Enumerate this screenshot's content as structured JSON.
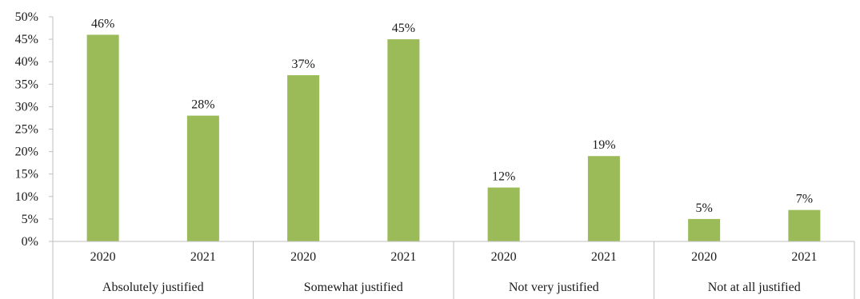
{
  "chart_data": {
    "type": "bar",
    "groups": [
      {
        "label": "Absolutely justified",
        "bars": [
          {
            "year": "2020",
            "value": 46,
            "label": "46%"
          },
          {
            "year": "2021",
            "value": 28,
            "label": "28%"
          }
        ]
      },
      {
        "label": "Somewhat justified",
        "bars": [
          {
            "year": "2020",
            "value": 37,
            "label": "37%"
          },
          {
            "year": "2021",
            "value": 45,
            "label": "45%"
          }
        ]
      },
      {
        "label": "Not very justified",
        "bars": [
          {
            "year": "2020",
            "value": 12,
            "label": "12%"
          },
          {
            "year": "2021",
            "value": 19,
            "label": "19%"
          }
        ]
      },
      {
        "label": "Not at all justified",
        "bars": [
          {
            "year": "2020",
            "value": 5,
            "label": "5%"
          },
          {
            "year": "2021",
            "value": 7,
            "label": "7%"
          }
        ]
      }
    ],
    "y_ticks": [
      "0%",
      "5%",
      "10%",
      "15%",
      "20%",
      "25%",
      "30%",
      "35%",
      "40%",
      "45%",
      "50%"
    ],
    "ylim": [
      0,
      50
    ],
    "title": "",
    "xlabel": "",
    "ylabel": "",
    "grid": false,
    "legend": "none",
    "bar_color": "#9bbb59",
    "axis_color": "#bfbfbf"
  }
}
